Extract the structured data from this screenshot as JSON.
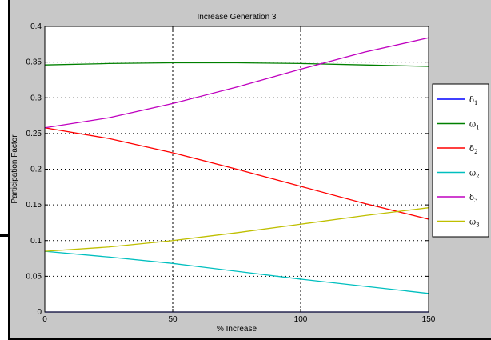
{
  "chart_data": {
    "type": "line",
    "title": "Increase Generation 3",
    "xlabel": "% Increase",
    "ylabel": "Participation Factor",
    "xlim": [
      0,
      150
    ],
    "ylim": [
      0,
      0.4
    ],
    "grid": true,
    "legend_position": "outside-right",
    "x_ticks": [
      "0",
      "50",
      "100",
      "150"
    ],
    "y_ticks": [
      "0",
      "0.05",
      "0.1",
      "0.15",
      "0.2",
      "0.25",
      "0.3",
      "0.35",
      "0.4"
    ],
    "x": [
      0,
      25,
      50,
      75,
      100,
      125,
      150
    ],
    "series": [
      {
        "name": "δ1",
        "symbol": "δ",
        "sub": "1",
        "color": "#0000ff",
        "values": [
          0.0,
          0.0,
          0.0,
          0.0,
          0.0,
          0.0,
          0.0
        ]
      },
      {
        "name": "ω1",
        "symbol": "ω",
        "sub": "1",
        "color": "#008000",
        "values": [
          0.346,
          0.348,
          0.349,
          0.349,
          0.348,
          0.346,
          0.344
        ]
      },
      {
        "name": "δ2",
        "symbol": "δ",
        "sub": "2",
        "color": "#ff0000",
        "values": [
          0.258,
          0.243,
          0.223,
          0.2,
          0.176,
          0.152,
          0.13
        ]
      },
      {
        "name": "ω2",
        "symbol": "ω",
        "sub": "2",
        "color": "#00bfbf",
        "values": [
          0.085,
          0.077,
          0.068,
          0.057,
          0.046,
          0.036,
          0.026
        ]
      },
      {
        "name": "δ3",
        "symbol": "δ",
        "sub": "3",
        "color": "#bf00bf",
        "values": [
          0.258,
          0.272,
          0.292,
          0.315,
          0.34,
          0.364,
          0.384
        ]
      },
      {
        "name": "ω3",
        "symbol": "ω",
        "sub": "3",
        "color": "#bfbf00",
        "values": [
          0.085,
          0.091,
          0.1,
          0.111,
          0.123,
          0.135,
          0.146
        ]
      }
    ]
  }
}
